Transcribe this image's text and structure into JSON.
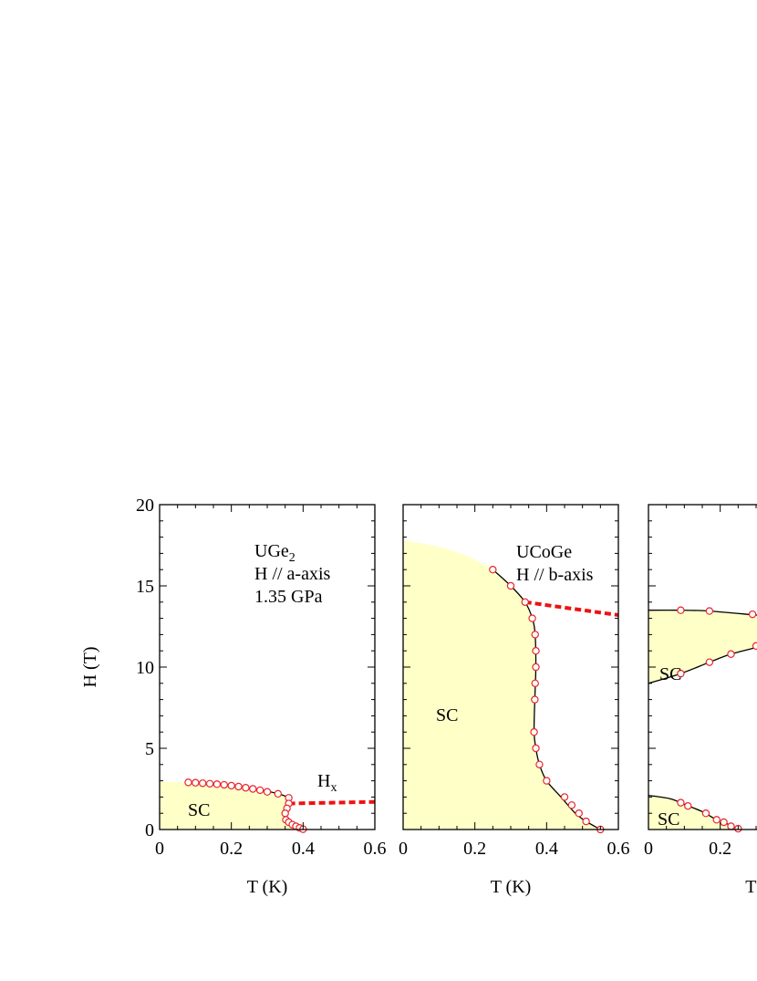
{
  "colors": {
    "sc_fill": "#ffffc8",
    "curve": "#000000",
    "marker_edge": "#e8252a",
    "marker_fill": "#ffffff",
    "dashed": "#ee1111"
  },
  "y_axis_label": "H (T)",
  "chart_data": [
    {
      "type": "scatter",
      "name": "UGe2",
      "annotation_lines": [
        "UGe",
        "H // a-axis",
        "1.35 GPa"
      ],
      "annotation_subscript": "2",
      "xlabel": "T (K)",
      "ylabel": "H (T)",
      "xlim": [
        0,
        0.6
      ],
      "ylim": [
        0,
        20
      ],
      "xticks": [
        0,
        0.2,
        0.4,
        0.6
      ],
      "xtick_labels": [
        "0",
        "0.2",
        "0.4",
        "0.6"
      ],
      "yticks": [
        0,
        5,
        10,
        15,
        20
      ],
      "ytick_labels": [
        "0",
        "5",
        "10",
        "15",
        "20"
      ],
      "region_label": "SC",
      "hx_label": "H",
      "hx_subscript": "x",
      "sc_boundary": [
        [
          0,
          2.95
        ],
        [
          0.08,
          2.9
        ],
        [
          0.12,
          2.85
        ],
        [
          0.2,
          2.7
        ],
        [
          0.28,
          2.45
        ],
        [
          0.33,
          2.2
        ],
        [
          0.36,
          1.95
        ],
        [
          0.36,
          1.7
        ],
        [
          0.352,
          1.2
        ],
        [
          0.35,
          0.8
        ],
        [
          0.355,
          0.5
        ],
        [
          0.37,
          0.25
        ],
        [
          0.385,
          0.1
        ],
        [
          0.4,
          0.0
        ]
      ],
      "points": {
        "x": [
          0.08,
          0.1,
          0.12,
          0.14,
          0.16,
          0.18,
          0.2,
          0.22,
          0.24,
          0.26,
          0.28,
          0.3,
          0.33,
          0.36,
          0.36,
          0.355,
          0.35,
          0.352,
          0.36,
          0.37,
          0.38,
          0.39,
          0.4
        ],
        "y": [
          2.9,
          2.88,
          2.85,
          2.82,
          2.79,
          2.75,
          2.7,
          2.64,
          2.57,
          2.5,
          2.42,
          2.32,
          2.2,
          1.95,
          1.6,
          1.3,
          1.0,
          0.6,
          0.45,
          0.3,
          0.2,
          0.1,
          0.02
        ]
      },
      "dashed_line": [
        [
          0.36,
          1.6
        ],
        [
          0.6,
          1.7
        ]
      ]
    },
    {
      "type": "scatter",
      "name": "UCoGe",
      "annotation_lines": [
        "UCoGe",
        "H // b-axis"
      ],
      "xlabel": "T (K)",
      "xlim": [
        0,
        0.6
      ],
      "ylim": [
        0,
        20
      ],
      "xticks": [
        0,
        0.2,
        0.4,
        0.6
      ],
      "xtick_labels": [
        "0",
        "0.2",
        "0.4",
        "0.6"
      ],
      "region_label": "SC",
      "sc_boundary": [
        [
          0,
          17.8
        ],
        [
          0.08,
          17.5
        ],
        [
          0.16,
          17.0
        ],
        [
          0.22,
          16.4
        ],
        [
          0.25,
          16.0
        ],
        [
          0.3,
          15.0
        ],
        [
          0.34,
          14.0
        ],
        [
          0.36,
          13.0
        ],
        [
          0.368,
          12.0
        ],
        [
          0.37,
          10.0
        ],
        [
          0.367,
          8.0
        ],
        [
          0.365,
          6.0
        ],
        [
          0.37,
          5.0
        ],
        [
          0.38,
          4.0
        ],
        [
          0.4,
          3.0
        ],
        [
          0.44,
          2.0
        ],
        [
          0.48,
          1.0
        ],
        [
          0.51,
          0.5
        ],
        [
          0.55,
          0.0
        ]
      ],
      "points": {
        "x": [
          0.25,
          0.3,
          0.34,
          0.36,
          0.368,
          0.37,
          0.37,
          0.368,
          0.367,
          0.365,
          0.37,
          0.38,
          0.4,
          0.45,
          0.47,
          0.49,
          0.51,
          0.55
        ],
        "y": [
          16.0,
          15.0,
          14.0,
          13.0,
          12.0,
          11.0,
          10.0,
          9.0,
          8.0,
          6.0,
          5.0,
          4.0,
          3.0,
          2.0,
          1.5,
          1.0,
          0.5,
          0.0
        ]
      },
      "dashed_line": [
        [
          0.34,
          14.0
        ],
        [
          0.6,
          13.2
        ]
      ]
    },
    {
      "type": "scatter",
      "name": "panel3",
      "xlabel": "T (",
      "xlim": [
        0,
        0.6
      ],
      "ylim": [
        0,
        20
      ],
      "xticks": [
        0,
        0.2
      ],
      "xtick_labels": [
        "0",
        "0.2"
      ],
      "region_labels": [
        "SC",
        "SC"
      ],
      "upper_region": {
        "top": [
          [
            0,
            13.5
          ],
          [
            0.09,
            13.5
          ],
          [
            0.17,
            13.45
          ],
          [
            0.3,
            13.2
          ],
          [
            0.35,
            13.1
          ]
        ],
        "bottom": [
          [
            0,
            9.0
          ],
          [
            0.09,
            9.6
          ],
          [
            0.17,
            10.3
          ],
          [
            0.23,
            10.8
          ],
          [
            0.3,
            11.2
          ],
          [
            0.35,
            11.5
          ]
        ]
      },
      "upper_points": {
        "x": [
          0.09,
          0.17,
          0.29,
          0.09,
          0.17,
          0.23,
          0.3
        ],
        "y": [
          13.5,
          13.45,
          13.25,
          9.6,
          10.3,
          10.8,
          11.3
        ]
      },
      "lower_region": [
        [
          0,
          2.1
        ],
        [
          0.06,
          1.9
        ],
        [
          0.1,
          1.55
        ],
        [
          0.15,
          1.1
        ],
        [
          0.19,
          0.6
        ],
        [
          0.22,
          0.35
        ],
        [
          0.24,
          0.12
        ],
        [
          0.26,
          0.0
        ]
      ],
      "lower_points": {
        "x": [
          0.09,
          0.11,
          0.16,
          0.19,
          0.21,
          0.23,
          0.25
        ],
        "y": [
          1.65,
          1.45,
          1.0,
          0.6,
          0.45,
          0.2,
          0.05
        ]
      }
    }
  ]
}
